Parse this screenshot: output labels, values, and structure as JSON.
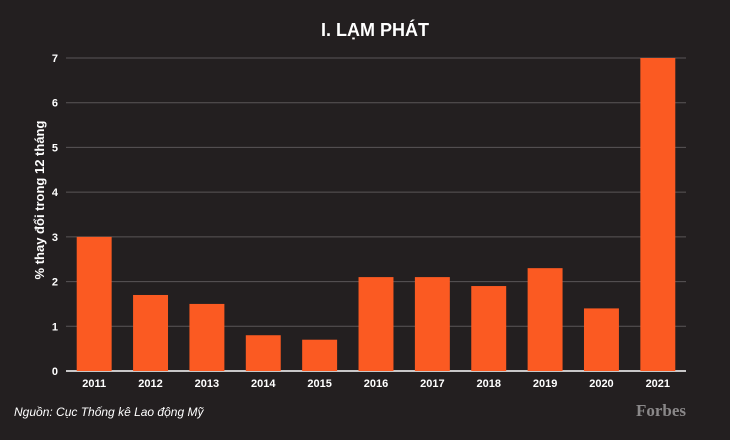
{
  "chart_data": {
    "type": "bar",
    "title": "I. LẠM PHÁT",
    "ylabel": "% thay đổi trong 12 tháng",
    "xlabel": "",
    "categories": [
      "2011",
      "2012",
      "2013",
      "2014",
      "2015",
      "2016",
      "2017",
      "2018",
      "2019",
      "2020",
      "2021"
    ],
    "values": [
      3.0,
      1.7,
      1.5,
      0.8,
      0.7,
      2.1,
      2.1,
      1.9,
      2.3,
      1.4,
      7.0
    ],
    "ylim": [
      0,
      7
    ],
    "yticks": [
      "0",
      "1",
      "2",
      "3",
      "4",
      "5",
      "6",
      "7"
    ],
    "grid": true,
    "legend": "none"
  },
  "footer": {
    "source": "Nguồn: Cục Thống kê Lao động Mỹ",
    "brand": "Forbes"
  },
  "colors": {
    "background": "#231f20",
    "bar": "#fb5a22",
    "grid": "#5a5657",
    "text": "#ffffff",
    "brand": "#8a8889"
  }
}
